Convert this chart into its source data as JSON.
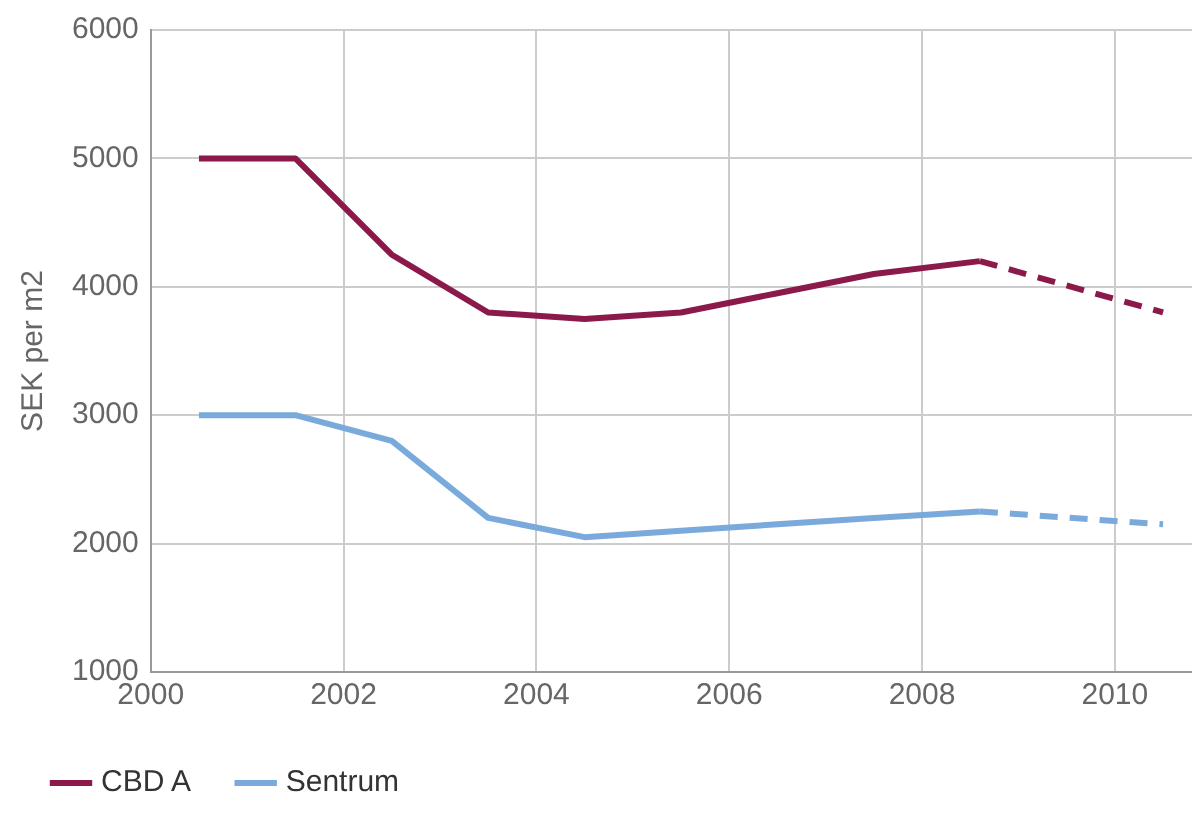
{
  "chart_data": {
    "type": "line",
    "ylabel": "SEK per m2",
    "xlim": [
      2000,
      2010.8
    ],
    "xticks": [
      2000,
      2002,
      2004,
      2006,
      2008,
      2010
    ],
    "ylim": [
      1000,
      6000
    ],
    "yticks": [
      1000,
      2000,
      3000,
      4000,
      5000,
      6000
    ],
    "grid": true,
    "legend": "bottom",
    "marker": "none",
    "series": [
      {
        "name": "CBD A",
        "color": "#8b1a4a",
        "line_style": "solid",
        "x": [
          2000.5,
          2001.5,
          2002.5,
          2003.5,
          2004.5,
          2005.5,
          2006.5,
          2007.5,
          2008.6
        ],
        "values": [
          5000,
          5000,
          4250,
          3800,
          3750,
          3800,
          3950,
          4100,
          4200
        ]
      },
      {
        "name": "Sentrum",
        "color": "#7aaadc",
        "line_style": "solid",
        "x": [
          2000.5,
          2001.5,
          2002.5,
          2003.5,
          2004.5,
          2005.5,
          2006.5,
          2007.5,
          2008.6
        ],
        "values": [
          3000,
          3000,
          2800,
          2200,
          2050,
          2100,
          2150,
          2200,
          2250
        ]
      },
      {
        "color": "#8b1a4a",
        "line_style": "dashed",
        "x": [
          2008.6,
          2010.5
        ],
        "values": [
          4200,
          3800
        ]
      },
      {
        "color": "#7aaadc",
        "line_style": "dashed",
        "x": [
          2008.6,
          2010.5
        ],
        "values": [
          2250,
          2150
        ]
      }
    ]
  }
}
